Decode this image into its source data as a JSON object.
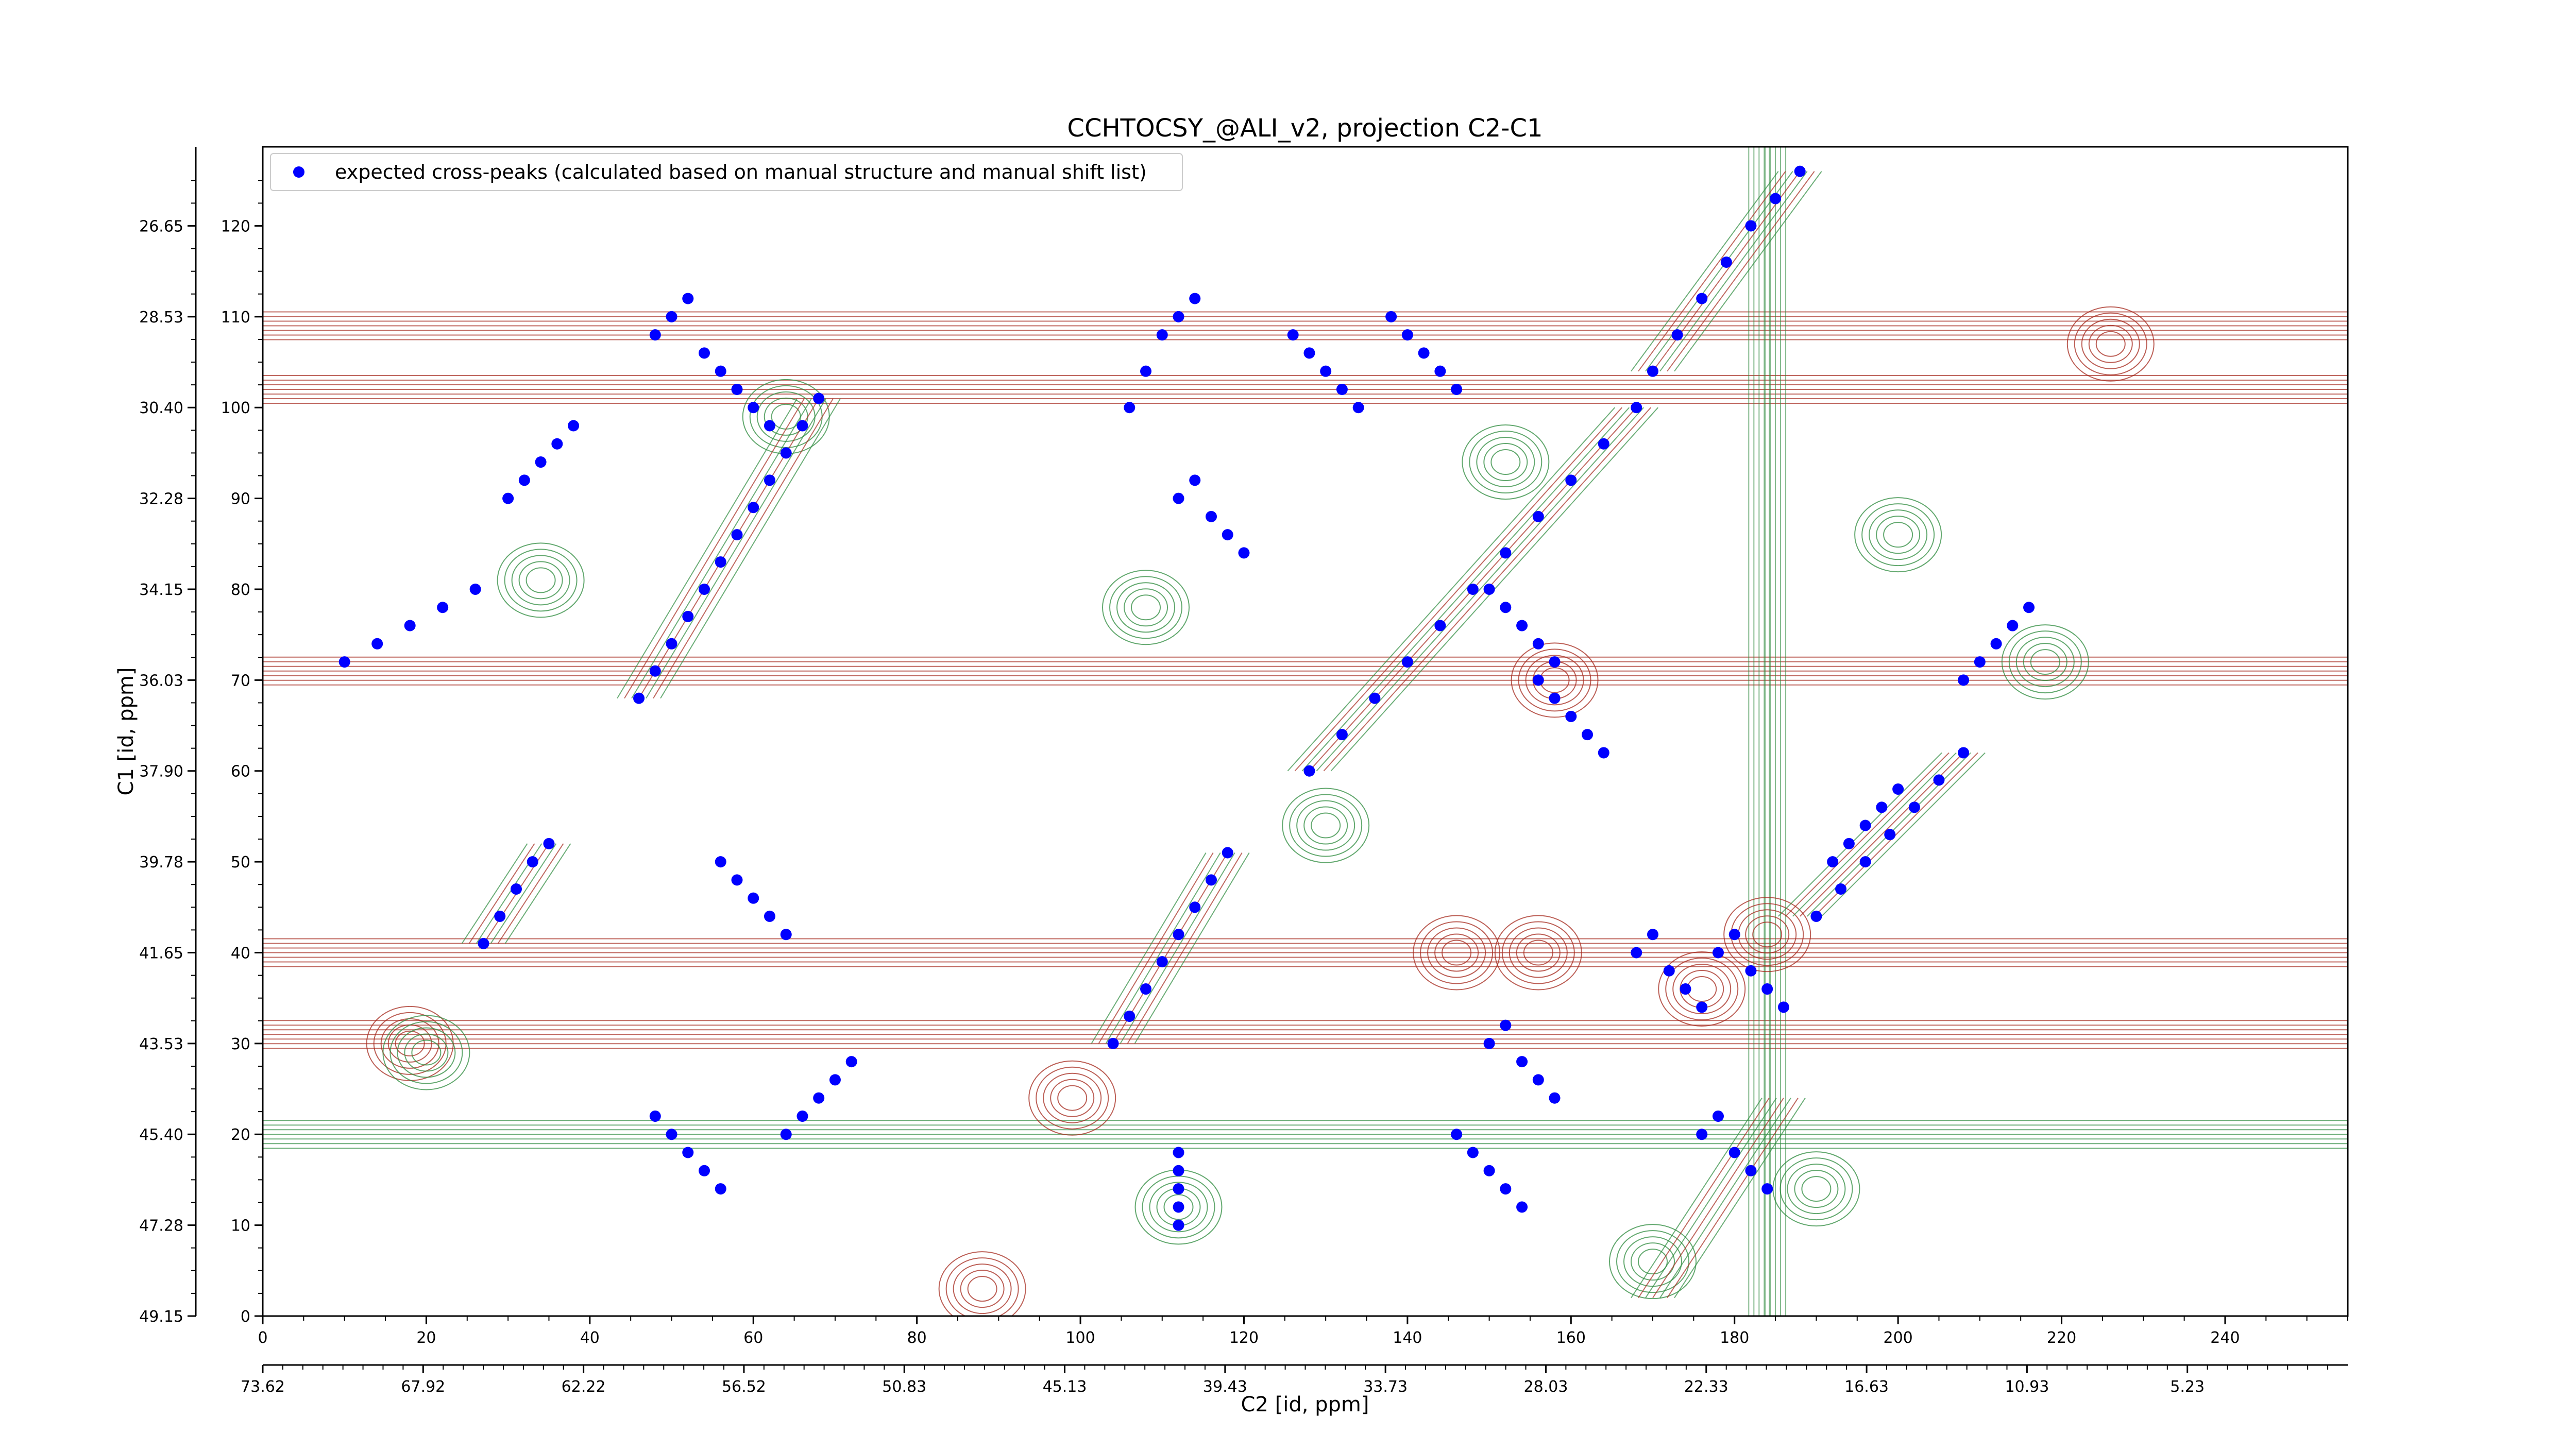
{
  "chart_data": {
    "type": "scatter",
    "title": "CCHTOCSY_@ALI_v2, projection C2-C1",
    "xlabel": "C2 [id, ppm]",
    "ylabel": "C1 [id, ppm]",
    "legend": {
      "placement": "top-left",
      "entries": [
        "expected cross-peaks (calculated based on manual structure and manual shift list)"
      ]
    },
    "grid": false,
    "x_points_range": [
      0,
      255
    ],
    "y_points_range": [
      0,
      127
    ],
    "x_points_ticks": [
      "0",
      "20",
      "40",
      "60",
      "80",
      "100",
      "120",
      "140",
      "160",
      "180",
      "200",
      "220",
      "240"
    ],
    "y_points_ticks": [
      "0",
      "10",
      "20",
      "30",
      "40",
      "50",
      "60",
      "70",
      "80",
      "90",
      "100",
      "110",
      "120"
    ],
    "x_ppm_ticks": [
      "73.62",
      "67.92",
      "62.22",
      "56.52",
      "50.83",
      "45.13",
      "39.43",
      "33.73",
      "28.03",
      "22.33",
      "16.63",
      "10.93",
      "5.23"
    ],
    "y_ppm_ticks": [
      "49.15",
      "47.28",
      "45.40",
      "43.53",
      "41.65",
      "39.78",
      "37.90",
      "36.03",
      "34.15",
      "32.28",
      "30.40",
      "28.53",
      "26.65"
    ],
    "colors": {
      "cross_peaks": "#0000ff",
      "positive_contours": "#a52a1e",
      "negative_contours": "#2e8b3e"
    },
    "series": [
      {
        "name": "expected cross-peaks (calculated based on manual structure and manual shift list)",
        "x": [
          46,
          48,
          50,
          52,
          54,
          56,
          58,
          60,
          62,
          64,
          66,
          68,
          27,
          29,
          31,
          33,
          35,
          104,
          106,
          108,
          110,
          112,
          114,
          116,
          118,
          128,
          132,
          136,
          140,
          144,
          148,
          152,
          156,
          160,
          164,
          168,
          170,
          173,
          176,
          179,
          182,
          185,
          188,
          190,
          193,
          196,
          199,
          202,
          205,
          208,
          10,
          14,
          18,
          22,
          26,
          30,
          32,
          34,
          36,
          38,
          48,
          50,
          52,
          54,
          56,
          58,
          60,
          62,
          64,
          66,
          68,
          70,
          72,
          106,
          108,
          110,
          112,
          114,
          112,
          114,
          116,
          118,
          120,
          126,
          128,
          130,
          132,
          134,
          138,
          140,
          142,
          144,
          146,
          150,
          152,
          154,
          156,
          158,
          156,
          158,
          160,
          162,
          164,
          168,
          170,
          172,
          174,
          176,
          178,
          180,
          182,
          184,
          186,
          146,
          148,
          150,
          152,
          154,
          150,
          152,
          154,
          156,
          158,
          176,
          178,
          180,
          182,
          184,
          192,
          194,
          196,
          198,
          200,
          208,
          210,
          212,
          214,
          216,
          112,
          112,
          112,
          112,
          112,
          56,
          58,
          60,
          62,
          64,
          48,
          50,
          52,
          54,
          56
        ],
        "y": [
          68,
          71,
          74,
          77,
          80,
          83,
          86,
          89,
          92,
          95,
          98,
          101,
          41,
          44,
          47,
          50,
          52,
          30,
          33,
          36,
          39,
          42,
          45,
          48,
          51,
          60,
          64,
          68,
          72,
          76,
          80,
          84,
          88,
          92,
          96,
          100,
          104,
          108,
          112,
          116,
          120,
          123,
          126,
          44,
          47,
          50,
          53,
          56,
          59,
          62,
          72,
          74,
          76,
          78,
          80,
          90,
          92,
          94,
          96,
          98,
          108,
          110,
          112,
          106,
          104,
          102,
          100,
          98,
          20,
          22,
          24,
          26,
          28,
          100,
          104,
          108,
          110,
          112,
          90,
          92,
          88,
          86,
          84,
          108,
          106,
          104,
          102,
          100,
          110,
          108,
          106,
          104,
          102,
          80,
          78,
          76,
          74,
          72,
          70,
          68,
          66,
          64,
          62,
          40,
          42,
          38,
          36,
          34,
          40,
          42,
          38,
          36,
          34,
          20,
          18,
          16,
          14,
          12,
          30,
          32,
          28,
          26,
          24,
          20,
          22,
          18,
          16,
          14,
          50,
          52,
          54,
          56,
          58,
          70,
          72,
          74,
          76,
          78,
          10,
          12,
          14,
          16,
          18,
          50,
          48,
          46,
          44,
          42,
          22,
          20,
          18,
          16,
          14
        ]
      }
    ]
  }
}
